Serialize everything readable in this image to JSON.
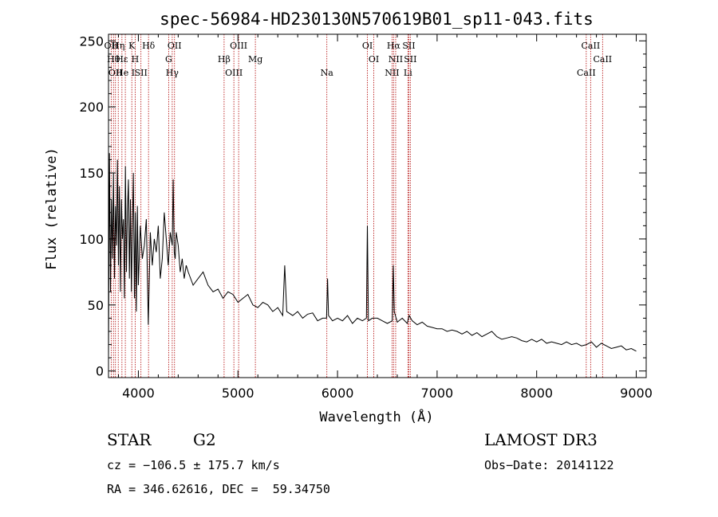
{
  "chart_data": {
    "type": "line",
    "title": "spec-56984-HD230130N570619B01_sp11-043.fits",
    "xlabel": "Wavelength (Å)",
    "ylabel": "Flux (relative)",
    "xlim": [
      3700,
      9100
    ],
    "ylim": [
      -5,
      255
    ],
    "xticks": [
      4000,
      5000,
      6000,
      7000,
      8000,
      9000
    ],
    "yticks": [
      0,
      50,
      100,
      150,
      200,
      250
    ],
    "grid": false,
    "series": [
      {
        "name": "flux",
        "x": [
          3700,
          3710,
          3720,
          3730,
          3740,
          3750,
          3760,
          3770,
          3780,
          3790,
          3800,
          3810,
          3820,
          3830,
          3840,
          3850,
          3860,
          3870,
          3880,
          3890,
          3900,
          3910,
          3920,
          3930,
          3940,
          3950,
          3960,
          3970,
          3980,
          3990,
          4000,
          4020,
          4040,
          4060,
          4080,
          4100,
          4120,
          4140,
          4160,
          4180,
          4200,
          4220,
          4240,
          4260,
          4280,
          4300,
          4320,
          4340,
          4350,
          4360,
          4370,
          4380,
          4400,
          4420,
          4440,
          4460,
          4480,
          4500,
          4550,
          4600,
          4650,
          4700,
          4750,
          4800,
          4850,
          4900,
          4950,
          5000,
          5050,
          5100,
          5150,
          5200,
          5250,
          5300,
          5350,
          5400,
          5450,
          5470,
          5490,
          5550,
          5600,
          5650,
          5700,
          5750,
          5800,
          5850,
          5890,
          5900,
          5910,
          5950,
          6000,
          6050,
          6100,
          6150,
          6200,
          6250,
          6290,
          6300,
          6310,
          6350,
          6400,
          6450,
          6500,
          6550,
          6560,
          6570,
          6600,
          6650,
          6700,
          6720,
          6750,
          6800,
          6850,
          6900,
          6950,
          7000,
          7050,
          7100,
          7150,
          7200,
          7250,
          7300,
          7350,
          7400,
          7450,
          7500,
          7550,
          7600,
          7650,
          7700,
          7750,
          7800,
          7850,
          7900,
          7950,
          8000,
          8050,
          8100,
          8150,
          8200,
          8250,
          8300,
          8350,
          8400,
          8450,
          8500,
          8550,
          8600,
          8650,
          8700,
          8750,
          8800,
          8850,
          8900,
          8950,
          9000
        ],
        "y": [
          10,
          165,
          60,
          130,
          85,
          150,
          70,
          125,
          95,
          160,
          80,
          140,
          60,
          130,
          100,
          115,
          55,
          155,
          75,
          120,
          145,
          70,
          130,
          60,
          110,
          150,
          55,
          120,
          45,
          125,
          65,
          110,
          85,
          95,
          115,
          35,
          105,
          80,
          100,
          90,
          110,
          70,
          85,
          120,
          100,
          80,
          105,
          95,
          145,
          90,
          85,
          105,
          95,
          75,
          85,
          70,
          80,
          75,
          65,
          70,
          75,
          65,
          60,
          62,
          55,
          60,
          58,
          52,
          55,
          58,
          50,
          48,
          52,
          50,
          45,
          48,
          42,
          80,
          45,
          42,
          45,
          40,
          43,
          44,
          38,
          40,
          40,
          70,
          42,
          38,
          40,
          38,
          42,
          36,
          40,
          38,
          40,
          110,
          38,
          40,
          40,
          38,
          36,
          38,
          80,
          45,
          37,
          40,
          36,
          42,
          38,
          35,
          37,
          34,
          33,
          32,
          32,
          30,
          31,
          30,
          28,
          30,
          27,
          29,
          26,
          28,
          30,
          26,
          24,
          25,
          26,
          25,
          23,
          22,
          24,
          22,
          24,
          21,
          22,
          21,
          20,
          22,
          20,
          21,
          19,
          20,
          22,
          18,
          21,
          19,
          17,
          18,
          19,
          16,
          17,
          15
        ]
      }
    ],
    "spectral_lines": [
      {
        "wl": 3727,
        "labels": [
          "OII"
        ]
      },
      {
        "wl": 3750,
        "labels": [
          "Hθ"
        ]
      },
      {
        "wl": 3770,
        "labels": [
          "OII"
        ]
      },
      {
        "wl": 3798,
        "labels": [
          "Hη"
        ]
      },
      {
        "wl": 3835,
        "labels": [
          "Hε"
        ]
      },
      {
        "wl": 3869,
        "labels": [
          "He I"
        ]
      },
      {
        "wl": 3934,
        "labels": [
          "K"
        ]
      },
      {
        "wl": 3968,
        "labels": [
          "H"
        ]
      },
      {
        "wl": 4026,
        "labels": [
          "SII"
        ]
      },
      {
        "wl": 4102,
        "labels": [
          "Hδ"
        ]
      },
      {
        "wl": 4304,
        "labels": [
          "G"
        ]
      },
      {
        "wl": 4340,
        "labels": [
          "Hγ"
        ]
      },
      {
        "wl": 4363,
        "labels": [
          "OII"
        ]
      },
      {
        "wl": 4861,
        "labels": [
          "Hβ"
        ]
      },
      {
        "wl": 4959,
        "labels": [
          "OIII"
        ]
      },
      {
        "wl": 5007,
        "labels": [
          "OIII"
        ]
      },
      {
        "wl": 5175,
        "labels": [
          "Mg"
        ]
      },
      {
        "wl": 5893,
        "labels": [
          "Na"
        ]
      },
      {
        "wl": 6300,
        "labels": [
          "OI"
        ]
      },
      {
        "wl": 6364,
        "labels": [
          "OI"
        ]
      },
      {
        "wl": 6548,
        "labels": [
          "NII"
        ]
      },
      {
        "wl": 6563,
        "labels": [
          "Hα"
        ]
      },
      {
        "wl": 6584,
        "labels": [
          "NII"
        ]
      },
      {
        "wl": 6707,
        "labels": [
          "Li"
        ]
      },
      {
        "wl": 6716,
        "labels": [
          "SII"
        ]
      },
      {
        "wl": 6731,
        "labels": [
          "SII"
        ]
      },
      {
        "wl": 8498,
        "labels": [
          "CaII"
        ]
      },
      {
        "wl": 8542,
        "labels": [
          "CaII"
        ]
      },
      {
        "wl": 8662,
        "labels": [
          "CaII"
        ]
      }
    ]
  },
  "info": {
    "class": "STAR",
    "subclass": "G2",
    "survey": "LAMOST DR3",
    "cz": "cz = −106.5 ± 175.7 km/s",
    "obs_date": "Obs−Date: 20141122",
    "coords": "RA = 346.62616, DEC =  59.34750"
  },
  "colors": {
    "spectrum": "#000000",
    "line_marker": "#b00000",
    "axes": "#000000"
  }
}
